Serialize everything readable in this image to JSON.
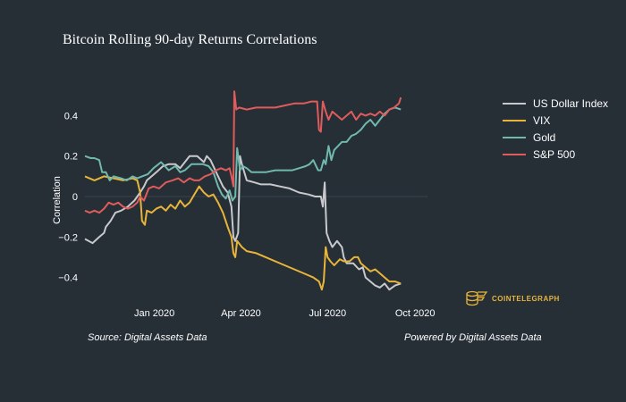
{
  "chart_data": {
    "type": "line",
    "title": "Bitcoin Rolling 90-day Returns Correlations",
    "xlabel": "",
    "ylabel": "Correlation",
    "x_ticks": [
      {
        "label": "Jan 2020",
        "day": 73
      },
      {
        "label": "Apr 2020",
        "day": 164
      },
      {
        "label": "Jul 2020",
        "day": 255
      },
      {
        "label": "Oct 2020",
        "day": 347
      }
    ],
    "x_range": [
      0,
      360
    ],
    "y_ticks": [
      0.4,
      0.2,
      0,
      -0.2,
      -0.4
    ],
    "y_tick_labels": [
      "0.4",
      "0.2",
      "0",
      "−0.2",
      "−0.4"
    ],
    "ylim": [
      -0.53,
      0.53
    ],
    "zero_line": true,
    "legend_position": "right",
    "series": [
      {
        "name": "US Dollar Index",
        "color": "#c8c9cc",
        "points": [
          [
            0,
            -0.21
          ],
          [
            8,
            -0.23
          ],
          [
            15,
            -0.2
          ],
          [
            20,
            -0.18
          ],
          [
            22,
            -0.15
          ],
          [
            27,
            -0.12
          ],
          [
            32,
            -0.08
          ],
          [
            38,
            -0.07
          ],
          [
            45,
            -0.05
          ],
          [
            52,
            -0.02
          ],
          [
            58,
            0.02
          ],
          [
            62,
            0.05
          ],
          [
            65,
            0.08
          ],
          [
            70,
            0.1
          ],
          [
            75,
            0.12
          ],
          [
            82,
            0.15
          ],
          [
            88,
            0.16
          ],
          [
            95,
            0.16
          ],
          [
            100,
            0.14
          ],
          [
            105,
            0.17
          ],
          [
            110,
            0.2
          ],
          [
            118,
            0.2
          ],
          [
            125,
            0.17
          ],
          [
            128,
            0.2
          ],
          [
            132,
            0.18
          ],
          [
            140,
            0.1
          ],
          [
            145,
            0.05
          ],
          [
            150,
            0.02
          ],
          [
            154,
            -0.05
          ],
          [
            156,
            -0.2
          ],
          [
            158,
            -0.22
          ],
          [
            161,
            -0.18
          ],
          [
            163,
            0.2
          ],
          [
            165,
            0.16
          ],
          [
            170,
            0.08
          ],
          [
            178,
            0.07
          ],
          [
            185,
            0.06
          ],
          [
            195,
            0.06
          ],
          [
            205,
            0.05
          ],
          [
            215,
            0.04
          ],
          [
            225,
            0.02
          ],
          [
            235,
            0.01
          ],
          [
            242,
            0.0
          ],
          [
            248,
            0.0
          ],
          [
            250,
            -0.05
          ],
          [
            252,
            0.07
          ],
          [
            254,
            -0.18
          ],
          [
            257,
            -0.22
          ],
          [
            260,
            -0.25
          ],
          [
            265,
            -0.22
          ],
          [
            270,
            -0.25
          ],
          [
            272,
            -0.3
          ],
          [
            275,
            -0.33
          ],
          [
            282,
            -0.33
          ],
          [
            288,
            -0.36
          ],
          [
            292,
            -0.35
          ],
          [
            295,
            -0.4
          ],
          [
            300,
            -0.42
          ],
          [
            305,
            -0.44
          ],
          [
            310,
            -0.45
          ],
          [
            315,
            -0.43
          ],
          [
            320,
            -0.46
          ],
          [
            326,
            -0.44
          ],
          [
            332,
            -0.43
          ]
        ]
      },
      {
        "name": "VIX",
        "color": "#e8b53a",
        "points": [
          [
            0,
            0.1
          ],
          [
            10,
            0.08
          ],
          [
            20,
            0.1
          ],
          [
            30,
            0.09
          ],
          [
            40,
            0.08
          ],
          [
            50,
            0.09
          ],
          [
            55,
            0.08
          ],
          [
            58,
            0.02
          ],
          [
            60,
            -0.12
          ],
          [
            63,
            -0.14
          ],
          [
            65,
            -0.07
          ],
          [
            70,
            -0.08
          ],
          [
            75,
            -0.06
          ],
          [
            80,
            -0.05
          ],
          [
            85,
            -0.07
          ],
          [
            90,
            -0.04
          ],
          [
            95,
            -0.06
          ],
          [
            100,
            -0.02
          ],
          [
            105,
            -0.05
          ],
          [
            110,
            -0.03
          ],
          [
            115,
            0.01
          ],
          [
            120,
            0.05
          ],
          [
            125,
            0.02
          ],
          [
            130,
            0.0
          ],
          [
            135,
            0.01
          ],
          [
            140,
            -0.03
          ],
          [
            145,
            -0.08
          ],
          [
            150,
            -0.15
          ],
          [
            154,
            -0.2
          ],
          [
            156,
            -0.28
          ],
          [
            158,
            -0.3
          ],
          [
            160,
            -0.22
          ],
          [
            165,
            -0.25
          ],
          [
            170,
            -0.27
          ],
          [
            180,
            -0.28
          ],
          [
            190,
            -0.3
          ],
          [
            200,
            -0.32
          ],
          [
            210,
            -0.34
          ],
          [
            220,
            -0.36
          ],
          [
            230,
            -0.38
          ],
          [
            240,
            -0.4
          ],
          [
            246,
            -0.42
          ],
          [
            249,
            -0.46
          ],
          [
            251,
            -0.42
          ],
          [
            253,
            -0.25
          ],
          [
            255,
            -0.3
          ],
          [
            258,
            -0.32
          ],
          [
            262,
            -0.34
          ],
          [
            268,
            -0.31
          ],
          [
            272,
            -0.32
          ],
          [
            278,
            -0.32
          ],
          [
            283,
            -0.3
          ],
          [
            287,
            -0.3
          ],
          [
            290,
            -0.33
          ],
          [
            295,
            -0.35
          ],
          [
            300,
            -0.37
          ],
          [
            305,
            -0.36
          ],
          [
            310,
            -0.38
          ],
          [
            315,
            -0.4
          ],
          [
            320,
            -0.42
          ],
          [
            326,
            -0.42
          ],
          [
            332,
            -0.43
          ]
        ]
      },
      {
        "name": "Gold",
        "color": "#70b9ad",
        "points": [
          [
            0,
            0.2
          ],
          [
            6,
            0.19
          ],
          [
            10,
            0.19
          ],
          [
            15,
            0.18
          ],
          [
            18,
            0.12
          ],
          [
            22,
            0.12
          ],
          [
            26,
            0.08
          ],
          [
            30,
            0.1
          ],
          [
            38,
            0.09
          ],
          [
            44,
            0.08
          ],
          [
            50,
            0.1
          ],
          [
            55,
            0.09
          ],
          [
            60,
            0.1
          ],
          [
            66,
            0.11
          ],
          [
            72,
            0.14
          ],
          [
            80,
            0.17
          ],
          [
            88,
            0.13
          ],
          [
            95,
            0.15
          ],
          [
            100,
            0.12
          ],
          [
            105,
            0.13
          ],
          [
            112,
            0.16
          ],
          [
            118,
            0.16
          ],
          [
            124,
            0.16
          ],
          [
            130,
            0.15
          ],
          [
            135,
            0.12
          ],
          [
            140,
            0.05
          ],
          [
            144,
            0.01
          ],
          [
            148,
            -0.01
          ],
          [
            152,
            0.03
          ],
          [
            155,
            -0.02
          ],
          [
            158,
            0.0
          ],
          [
            160,
            0.24
          ],
          [
            163,
            0.13
          ],
          [
            166,
            0.15
          ],
          [
            170,
            0.14
          ],
          [
            175,
            0.12
          ],
          [
            180,
            0.12
          ],
          [
            190,
            0.12
          ],
          [
            200,
            0.13
          ],
          [
            210,
            0.13
          ],
          [
            218,
            0.13
          ],
          [
            225,
            0.14
          ],
          [
            232,
            0.15
          ],
          [
            236,
            0.16
          ],
          [
            240,
            0.18
          ],
          [
            245,
            0.13
          ],
          [
            248,
            0.13
          ],
          [
            251,
            0.18
          ],
          [
            253,
            0.16
          ],
          [
            256,
            0.25
          ],
          [
            259,
            0.18
          ],
          [
            262,
            0.23
          ],
          [
            266,
            0.25
          ],
          [
            270,
            0.27
          ],
          [
            275,
            0.27
          ],
          [
            280,
            0.3
          ],
          [
            285,
            0.31
          ],
          [
            290,
            0.33
          ],
          [
            295,
            0.36
          ],
          [
            300,
            0.38
          ],
          [
            305,
            0.35
          ],
          [
            310,
            0.38
          ],
          [
            315,
            0.41
          ],
          [
            320,
            0.43
          ],
          [
            326,
            0.44
          ],
          [
            332,
            0.43
          ]
        ]
      },
      {
        "name": "S&P 500",
        "color": "#e05c5c",
        "points": [
          [
            0,
            -0.07
          ],
          [
            5,
            -0.08
          ],
          [
            10,
            -0.07
          ],
          [
            15,
            -0.08
          ],
          [
            20,
            -0.06
          ],
          [
            25,
            -0.03
          ],
          [
            30,
            -0.04
          ],
          [
            35,
            -0.03
          ],
          [
            40,
            -0.05
          ],
          [
            45,
            -0.06
          ],
          [
            50,
            -0.05
          ],
          [
            55,
            -0.03
          ],
          [
            58,
            0.0
          ],
          [
            62,
            -0.02
          ],
          [
            67,
            0.04
          ],
          [
            72,
            0.05
          ],
          [
            78,
            0.04
          ],
          [
            85,
            0.07
          ],
          [
            92,
            0.08
          ],
          [
            98,
            0.09
          ],
          [
            104,
            0.07
          ],
          [
            110,
            0.09
          ],
          [
            115,
            0.08
          ],
          [
            120,
            0.08
          ],
          [
            126,
            0.1
          ],
          [
            132,
            0.11
          ],
          [
            138,
            0.13
          ],
          [
            143,
            0.14
          ],
          [
            148,
            0.13
          ],
          [
            152,
            0.14
          ],
          [
            154,
            0.1
          ],
          [
            156,
            0.05
          ],
          [
            157,
            0.52
          ],
          [
            159,
            0.43
          ],
          [
            162,
            0.44
          ],
          [
            170,
            0.43
          ],
          [
            180,
            0.44
          ],
          [
            190,
            0.44
          ],
          [
            200,
            0.44
          ],
          [
            210,
            0.45
          ],
          [
            220,
            0.46
          ],
          [
            230,
            0.46
          ],
          [
            238,
            0.47
          ],
          [
            244,
            0.47
          ],
          [
            246,
            0.33
          ],
          [
            248,
            0.32
          ],
          [
            250,
            0.47
          ],
          [
            253,
            0.42
          ],
          [
            256,
            0.38
          ],
          [
            260,
            0.42
          ],
          [
            265,
            0.4
          ],
          [
            270,
            0.38
          ],
          [
            275,
            0.4
          ],
          [
            280,
            0.42
          ],
          [
            285,
            0.38
          ],
          [
            290,
            0.41
          ],
          [
            295,
            0.4
          ],
          [
            300,
            0.41
          ],
          [
            305,
            0.4
          ],
          [
            310,
            0.42
          ],
          [
            315,
            0.4
          ],
          [
            320,
            0.43
          ],
          [
            325,
            0.44
          ],
          [
            330,
            0.46
          ],
          [
            332,
            0.49
          ]
        ]
      }
    ]
  },
  "footer": {
    "source": "Source: Digital Assets Data",
    "powered_by": "Powered by Digital Assets Data"
  },
  "logo": {
    "text": "COINTELEGRAPH",
    "icon": "cointelegraph-logo-icon",
    "color": "#e8b53a"
  },
  "colors": {
    "background": "#262e36",
    "zero_line": "#3a4450"
  }
}
